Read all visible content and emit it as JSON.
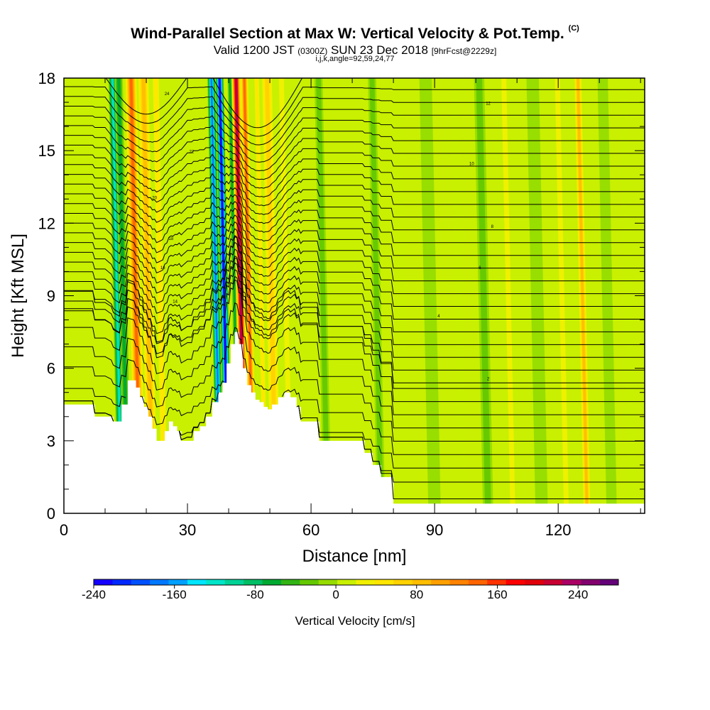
{
  "title": {
    "main": "Wind-Parallel Section at Max W: Vertical Velocity & Pot.Temp.",
    "copyright": "(C)",
    "valid_prefix": "Valid 1200 JST",
    "valid_utc": "(0300Z)",
    "valid_date": "SUN 23 Dec 2018",
    "forecast": "[9hrFcst@2229z]",
    "indices": "i,j,k,angle=92,59,24,77"
  },
  "chart_data": {
    "type": "heatmap",
    "xlabel": "Distance [nm]",
    "ylabel": "Height [Kft MSL]",
    "xlim": [
      0,
      141
    ],
    "ylim": [
      0,
      18
    ],
    "x_ticks": [
      "0",
      "30",
      "60",
      "90",
      "120"
    ],
    "y_ticks": [
      "0",
      "3",
      "6",
      "9",
      "12",
      "15",
      "18"
    ],
    "terrain": {
      "x": [
        0,
        7,
        7.5,
        10,
        12,
        13.5,
        14,
        15.5,
        16.5,
        17.5,
        18.5,
        19.5,
        20.5,
        21.5,
        22.5,
        23.5,
        24.5,
        25.5,
        26.5,
        27.5,
        28.5,
        29.5,
        31.5,
        33,
        34.5,
        36,
        37.5,
        38.5,
        39.5,
        40.5,
        41.5,
        42.5,
        43.5,
        44.5,
        45.5,
        46.5,
        47.5,
        48.5,
        49.5,
        50.5,
        52,
        53.5,
        55,
        56.5,
        57.5,
        62,
        66,
        70,
        73,
        75,
        77,
        80,
        141
      ],
      "y": [
        4.5,
        4.5,
        4.0,
        4.0,
        3.8,
        3.8,
        4.5,
        5.5,
        5.5,
        5.2,
        4.8,
        4.4,
        4.0,
        3.5,
        3.0,
        3.0,
        3.4,
        3.8,
        3.6,
        3.4,
        3.0,
        3.0,
        3.4,
        3.6,
        4.0,
        4.6,
        5.0,
        5.4,
        6.2,
        7.0,
        7.5,
        7.0,
        6.0,
        5.3,
        5.0,
        4.7,
        4.6,
        4.4,
        4.3,
        4.5,
        4.8,
        5.0,
        4.8,
        4.4,
        3.8,
        3.0,
        3.0,
        3.0,
        2.5,
        2.0,
        1.5,
        0.4,
        0.4
      ]
    },
    "series": [
      {
        "vertical_velocity_bands": [
          {
            "x": 10,
            "w": 3,
            "value": 20
          },
          {
            "x": 14,
            "w": 2,
            "value": -120
          },
          {
            "x": 15.5,
            "w": 2,
            "value": -60
          },
          {
            "x": 18.5,
            "w": 3,
            "value": 140
          },
          {
            "x": 21.5,
            "w": 3,
            "value": 90
          },
          {
            "x": 24.5,
            "w": 2,
            "value": 40
          },
          {
            "x": 38,
            "w": 2,
            "value": -170
          },
          {
            "x": 40,
            "w": 2,
            "value": -240
          },
          {
            "x": 42.5,
            "w": 1.2,
            "value": -60
          },
          {
            "x": 44,
            "w": 2.2,
            "value": 230
          },
          {
            "x": 46,
            "w": 2,
            "value": 140
          },
          {
            "x": 49,
            "w": 1.5,
            "value": 40
          },
          {
            "x": 51.5,
            "w": 3,
            "value": 60
          },
          {
            "x": 55,
            "w": 2,
            "value": 30
          },
          {
            "x": 64,
            "w": 2,
            "value": -20
          },
          {
            "x": 77,
            "w": 2,
            "value": -20
          },
          {
            "x": 83,
            "w": 2.5,
            "value": 20
          },
          {
            "x": 90,
            "w": 3,
            "value": -15
          },
          {
            "x": 97,
            "w": 2,
            "value": 20
          },
          {
            "x": 103,
            "w": 2.5,
            "value": -20
          },
          {
            "x": 109,
            "w": 2,
            "value": 25
          },
          {
            "x": 116,
            "w": 3,
            "value": -15
          },
          {
            "x": 122,
            "w": 2,
            "value": 30
          },
          {
            "x": 127,
            "w": 2,
            "value": 90
          },
          {
            "x": 133,
            "w": 2.5,
            "value": -15
          },
          {
            "x": 138,
            "w": 2,
            "value": 20
          }
        ]
      },
      {
        "potential_temperature_isentropes": {
          "count": 34,
          "surface_value": 0.6,
          "top_value": 17.8,
          "upper_labels": [
            "24",
            "22",
            "20",
            "18",
            "16",
            "14",
            "12",
            "10",
            "8",
            "6",
            "4",
            "2"
          ]
        }
      }
    ],
    "colorbar": {
      "title": "Vertical Velocity [cm/s]",
      "min": -240,
      "max": 280,
      "tick_labels": [
        "-240",
        "-160",
        "-80",
        "0",
        "80",
        "160",
        "240"
      ],
      "colors": [
        "#1400ff",
        "#0028ff",
        "#0050ff",
        "#0078ff",
        "#00a0ff",
        "#00e6ff",
        "#00e6c8",
        "#00d296",
        "#00be64",
        "#00aa32",
        "#32b414",
        "#64c800",
        "#96dc00",
        "#c8f000",
        "#f0f000",
        "#ffe600",
        "#ffd200",
        "#ffbe00",
        "#ffa000",
        "#ff8200",
        "#ff6400",
        "#ff3200",
        "#ff0000",
        "#e1000a",
        "#c80032",
        "#aa0064",
        "#82006e",
        "#640078"
      ]
    }
  }
}
